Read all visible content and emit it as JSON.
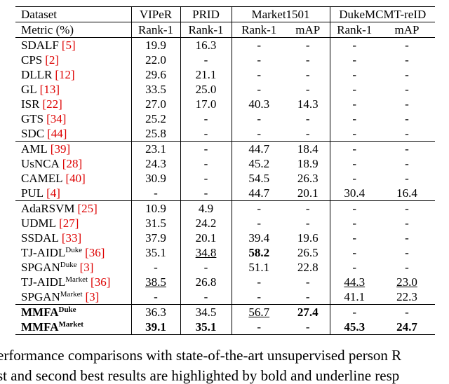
{
  "table": {
    "header": [
      "Dataset",
      "VIPeR",
      "PRID",
      "Market1501",
      "DukeMCMT-reID"
    ],
    "metric_row": [
      "Metric (%)",
      "Rank-1",
      "Rank-1",
      "Rank-1",
      "mAP",
      "Rank-1",
      "mAP"
    ],
    "groups": [
      {
        "rows": [
          {
            "method": {
              "name": "SDALF",
              "cite": "[5]"
            },
            "values": [
              "19.9",
              "16.3",
              "-",
              "-",
              "-",
              "-"
            ]
          },
          {
            "method": {
              "name": "CPS",
              "cite": "[2]"
            },
            "values": [
              "22.0",
              "-",
              "-",
              "-",
              "-",
              "-"
            ]
          },
          {
            "method": {
              "name": "DLLR",
              "cite": "[12]"
            },
            "values": [
              "29.6",
              "21.1",
              "-",
              "-",
              "-",
              "-"
            ]
          },
          {
            "method": {
              "name": "GL",
              "cite": "[13]"
            },
            "values": [
              "33.5",
              "25.0",
              "-",
              "-",
              "-",
              "-"
            ]
          },
          {
            "method": {
              "name": "ISR",
              "cite": "[22]"
            },
            "values": [
              "27.0",
              "17.0",
              "40.3",
              "14.3",
              "-",
              "-"
            ]
          },
          {
            "method": {
              "name": "GTS",
              "cite": "[34]"
            },
            "values": [
              "25.2",
              "-",
              "-",
              "-",
              "-",
              "-"
            ]
          },
          {
            "method": {
              "name": "SDC",
              "cite": "[44]"
            },
            "values": [
              "25.8",
              "-",
              "-",
              "-",
              "-",
              "-"
            ]
          }
        ]
      },
      {
        "rows": [
          {
            "method": {
              "name": "AML",
              "cite": "[39]"
            },
            "values": [
              "23.1",
              "-",
              "44.7",
              "18.4",
              "-",
              "-"
            ]
          },
          {
            "method": {
              "name": "UsNCA",
              "cite": "[28]"
            },
            "values": [
              "24.3",
              "-",
              "45.2",
              "18.9",
              "-",
              "-"
            ]
          },
          {
            "method": {
              "name": "CAMEL",
              "cite": "[40]"
            },
            "values": [
              "30.9",
              "-",
              "54.5",
              "26.3",
              "-",
              "-"
            ]
          },
          {
            "method": {
              "name": "PUL",
              "cite": "[4]"
            },
            "values": [
              "-",
              "-",
              "44.7",
              "20.1",
              "30.4",
              "16.4"
            ]
          }
        ]
      },
      {
        "rows": [
          {
            "method": {
              "name": "AdaRSVM",
              "cite": "[25]"
            },
            "values": [
              "10.9",
              "4.9",
              "-",
              "-",
              "-",
              "-"
            ]
          },
          {
            "method": {
              "name": "UDML",
              "cite": "[27]"
            },
            "values": [
              "31.5",
              "24.2",
              "-",
              "-",
              "-",
              "-"
            ]
          },
          {
            "method": {
              "name": "SSDAL",
              "cite": "[33]"
            },
            "values": [
              "37.9",
              "20.1",
              "39.4",
              "19.6",
              "-",
              "-"
            ]
          },
          {
            "method": {
              "name": "TJ-AIDL",
              "sup": "Duke",
              "cite": "[36]"
            },
            "values": [
              "35.1",
              "34.8",
              "58.2",
              "26.5",
              "-",
              "-"
            ]
          },
          {
            "method": {
              "name": "SPGAN",
              "sup": "Duke",
              "cite": "[3]"
            },
            "values": [
              "-",
              "-",
              "51.1",
              "22.8",
              "-",
              "-"
            ]
          },
          {
            "method": {
              "name": "TJ-AIDL",
              "sup": "Market",
              "cite": "[36]"
            },
            "values": [
              "38.5",
              "26.8",
              "-",
              "-",
              "44.3",
              "23.0"
            ]
          },
          {
            "method": {
              "name": "SPGAN",
              "sup": "Market",
              "cite": "[3]"
            },
            "values": [
              "-",
              "-",
              "-",
              "-",
              "41.1",
              "22.3"
            ]
          }
        ]
      },
      {
        "rows": [
          {
            "method": {
              "name": "MMFA",
              "sup": "Duke"
            },
            "values": [
              "36.3",
              "34.5",
              "56.7",
              "27.4",
              "-",
              "-"
            ]
          },
          {
            "method": {
              "name": "MMFA",
              "sup": "Market"
            },
            "values": [
              "39.1",
              "35.1",
              "-",
              "-",
              "45.3",
              "24.7"
            ]
          }
        ]
      }
    ]
  },
  "caption": [
    "erformance comparisons with state-of-the-art unsupervised person R",
    "st and second best results are highlighted by bold and underline resp"
  ]
}
